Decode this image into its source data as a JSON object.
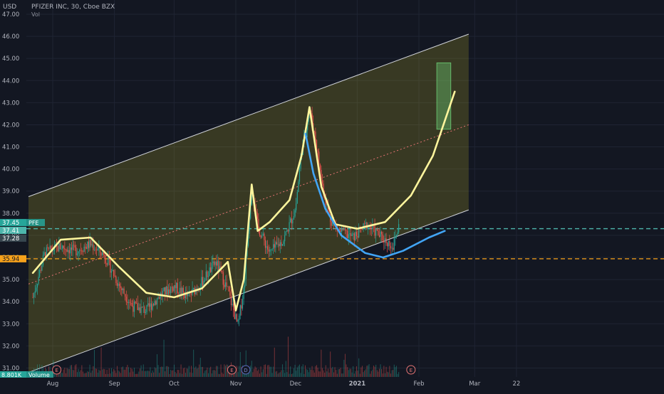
{
  "header": {
    "currency": "USD",
    "symbol_line": "PFIZER INC, 30, Cboe BZX",
    "indicator": "Vol"
  },
  "chart_data": {
    "type": "candlestick",
    "title": "PFIZER INC, 30, Cboe BZX",
    "ylabel": "USD",
    "ylim": [
      30.5,
      47.3
    ],
    "y_ticks": [
      "47.00",
      "46.00",
      "45.00",
      "44.00",
      "43.00",
      "42.00",
      "41.00",
      "40.00",
      "39.00",
      "38.00",
      "37.00",
      "36.00",
      "35.00",
      "34.00",
      "33.00",
      "32.00",
      "31.00"
    ],
    "x_ticks": [
      "Aug",
      "Sep",
      "Oct",
      "Nov",
      "Dec",
      "2021",
      "Feb",
      "Mar",
      "22"
    ],
    "price_path": [
      {
        "t": "Jul 22",
        "v": 34.2
      },
      {
        "t": "Jul 28",
        "v": 36.2
      },
      {
        "t": "Aug 05",
        "v": 36.5
      },
      {
        "t": "Aug 12",
        "v": 36.3
      },
      {
        "t": "Aug 20",
        "v": 36.6
      },
      {
        "t": "Aug 27",
        "v": 36.1
      },
      {
        "t": "Sep 03",
        "v": 34.8
      },
      {
        "t": "Sep 10",
        "v": 33.8
      },
      {
        "t": "Sep 17",
        "v": 33.6
      },
      {
        "t": "Sep 24",
        "v": 34.3
      },
      {
        "t": "Oct 01",
        "v": 34.7
      },
      {
        "t": "Oct 08",
        "v": 34.2
      },
      {
        "t": "Oct 15",
        "v": 34.9
      },
      {
        "t": "Oct 22",
        "v": 35.8
      },
      {
        "t": "Oct 28",
        "v": 34.5
      },
      {
        "t": "Nov 02",
        "v": 32.9
      },
      {
        "t": "Nov 05",
        "v": 34.6
      },
      {
        "t": "Nov 09",
        "v": 39.3
      },
      {
        "t": "Nov 12",
        "v": 37.4
      },
      {
        "t": "Nov 18",
        "v": 36.2
      },
      {
        "t": "Nov 25",
        "v": 36.8
      },
      {
        "t": "Dec 01",
        "v": 38.2
      },
      {
        "t": "Dec 04",
        "v": 40.8
      },
      {
        "t": "Dec 08",
        "v": 42.7
      },
      {
        "t": "Dec 11",
        "v": 41.4
      },
      {
        "t": "Dec 14",
        "v": 39.5
      },
      {
        "t": "Dec 18",
        "v": 37.8
      },
      {
        "t": "Dec 23",
        "v": 37.2
      },
      {
        "t": "Dec 30",
        "v": 36.9
      },
      {
        "t": "Jan 06",
        "v": 37.5
      },
      {
        "t": "Jan 12",
        "v": 37.0
      },
      {
        "t": "Jan 19",
        "v": 36.5
      },
      {
        "t": "Jan 22",
        "v": 37.45
      }
    ],
    "last_price": {
      "series": "PFE",
      "value": "37.45",
      "bid": "37.41",
      "ask": "37.28"
    },
    "horizontal_levels": [
      {
        "value": 37.3,
        "style": "dashed",
        "color": "#4db6ac"
      },
      {
        "value": 35.94,
        "label": "35.94",
        "style": "dashed",
        "color": "#f7a21b"
      }
    ],
    "channel": {
      "upper": [
        {
          "t": "Jul 22",
          "v": 38.75
        },
        {
          "t": "Feb 26",
          "v": 46.1
        }
      ],
      "lower": [
        {
          "t": "Jul 22",
          "v": 30.8
        },
        {
          "t": "Feb 26",
          "v": 38.15
        }
      ],
      "mid": [
        {
          "t": "Jul 22",
          "v": 34.8
        },
        {
          "t": "Feb 26",
          "v": 42.0
        }
      ]
    },
    "target_box": {
      "from": "Feb 10",
      "to": "Feb 17",
      "low": 41.8,
      "high": 44.8
    },
    "volume_label": "8.801K",
    "volume_title": "Volume",
    "events": [
      "E",
      "D",
      "E",
      "D",
      "E"
    ],
    "grid": true,
    "legend": "top-left"
  },
  "colors": {
    "background": "#131722",
    "channel_fill": "rgba(190,180,40,0.22)",
    "channel_line": "#d0d3da",
    "yellow_curve": "#fff59d",
    "blue_curve": "#42a5f5",
    "up_candle": "#26a69a",
    "down_candle": "#ef5350",
    "target_box": "#66bb6a"
  }
}
